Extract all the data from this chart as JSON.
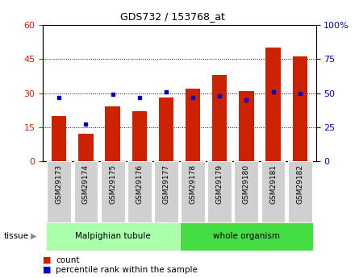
{
  "title": "GDS732 / 153768_at",
  "samples": [
    "GSM29173",
    "GSM29174",
    "GSM29175",
    "GSM29176",
    "GSM29177",
    "GSM29178",
    "GSM29179",
    "GSM29180",
    "GSM29181",
    "GSM29182"
  ],
  "counts": [
    20,
    12,
    24,
    22,
    28,
    32,
    38,
    31,
    50,
    46
  ],
  "percentiles": [
    47,
    27,
    49,
    47,
    51,
    47,
    48,
    45,
    51,
    50
  ],
  "ylim_left": [
    0,
    60
  ],
  "ylim_right": [
    0,
    100
  ],
  "yticks_left": [
    0,
    15,
    30,
    45,
    60
  ],
  "yticks_right": [
    0,
    25,
    50,
    75,
    100
  ],
  "bar_color": "#cc2200",
  "dot_color": "#0000cc",
  "tissue_groups": [
    {
      "label": "Malpighian tubule",
      "start": 0,
      "end": 5,
      "color": "#aaffaa"
    },
    {
      "label": "whole organism",
      "start": 5,
      "end": 10,
      "color": "#44dd44"
    }
  ],
  "tissue_label": "tissue",
  "legend_count_label": "count",
  "legend_pct_label": "percentile rank within the sample",
  "grid_color": "black",
  "tick_label_color_left": "#cc2200",
  "tick_label_color_right": "#0000cc"
}
